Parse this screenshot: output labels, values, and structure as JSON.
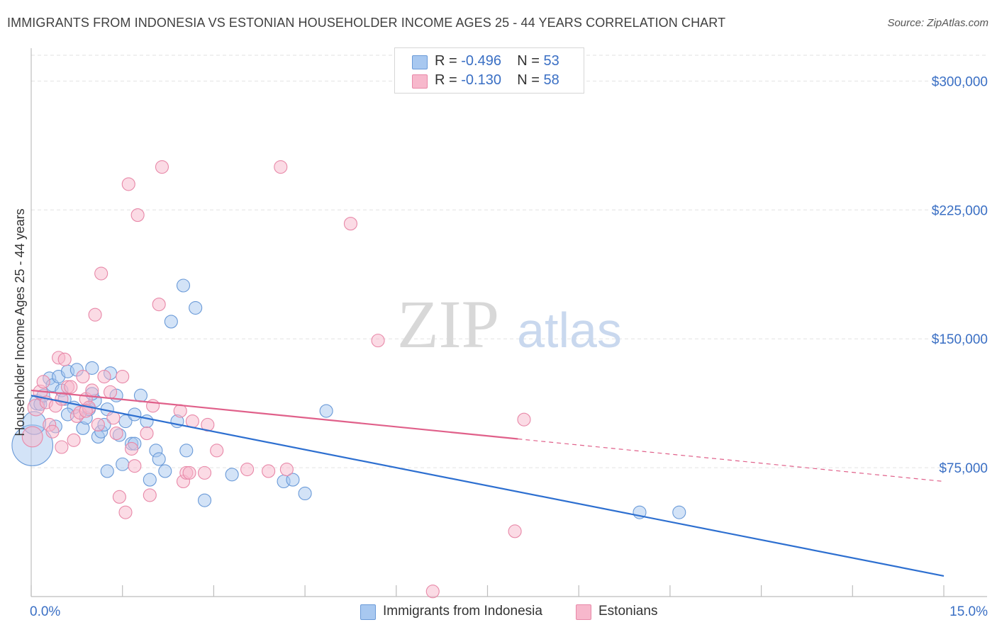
{
  "title": "IMMIGRANTS FROM INDONESIA VS ESTONIAN HOUSEHOLDER INCOME AGES 25 - 44 YEARS CORRELATION CHART",
  "source": "Source: ZipAtlas.com",
  "watermark": {
    "zip": "ZIP",
    "atlas": "atlas"
  },
  "legend": {
    "rows": [
      {
        "r_label": "R = ",
        "r_value": "-0.496",
        "n_label": "N = ",
        "n_value": "53"
      },
      {
        "r_label": "R = ",
        "r_value": " -0.130",
        "n_label": "N = ",
        "n_value": "58"
      }
    ]
  },
  "colors": {
    "blue_fill": "#a8c8f0",
    "blue_stroke": "#6a9ad8",
    "blue_line": "#2d6fd0",
    "pink_fill": "#f7b8cc",
    "pink_stroke": "#e888a8",
    "pink_line": "#e0608a",
    "tick_label": "#3a6fc4",
    "grid": "#e2e2e2"
  },
  "chart_data": {
    "type": "scatter",
    "title": "IMMIGRANTS FROM INDONESIA VS ESTONIAN HOUSEHOLDER INCOME AGES 25 - 44 YEARS CORRELATION CHART",
    "xlabel": "",
    "ylabel": "Householder Income Ages 25 - 44 years",
    "xlim": [
      0,
      15
    ],
    "ylim": [
      0,
      315000
    ],
    "x_tick_labels": [
      "0.0%",
      "15.0%"
    ],
    "y_ticks": [
      75000,
      150000,
      225000,
      300000
    ],
    "y_tick_labels": [
      "$75,000",
      "$150,000",
      "$225,000",
      "$300,000"
    ],
    "grid": true,
    "legend_position": "bottom",
    "series": [
      {
        "name": "Immigrants from Indonesia",
        "R": -0.496,
        "N": 53,
        "trend": {
          "x": [
            0.0,
            15.0
          ],
          "y": [
            117000,
            12000
          ],
          "dashed_from": null
        },
        "points": [
          {
            "x": 0.02,
            "y": 88000,
            "s": 3.2
          },
          {
            "x": 0.05,
            "y": 101000,
            "s": 1.8
          },
          {
            "x": 0.1,
            "y": 113000,
            "s": 1.2
          },
          {
            "x": 0.15,
            "y": 112000,
            "s": 1.0
          },
          {
            "x": 0.2,
            "y": 117000,
            "s": 1.0
          },
          {
            "x": 0.3,
            "y": 127000,
            "s": 1.0
          },
          {
            "x": 0.35,
            "y": 123000,
            "s": 1.0
          },
          {
            "x": 0.4,
            "y": 99000,
            "s": 1.0
          },
          {
            "x": 0.45,
            "y": 128000,
            "s": 1.0
          },
          {
            "x": 0.5,
            "y": 120000,
            "s": 1.0
          },
          {
            "x": 0.55,
            "y": 115000,
            "s": 1.0
          },
          {
            "x": 0.6,
            "y": 131000,
            "s": 1.0
          },
          {
            "x": 0.7,
            "y": 110000,
            "s": 1.0
          },
          {
            "x": 0.75,
            "y": 132000,
            "s": 1.0
          },
          {
            "x": 0.85,
            "y": 98000,
            "s": 1.0
          },
          {
            "x": 0.9,
            "y": 104000,
            "s": 1.0
          },
          {
            "x": 0.95,
            "y": 109000,
            "s": 1.0
          },
          {
            "x": 1.0,
            "y": 133000,
            "s": 1.0
          },
          {
            "x": 1.05,
            "y": 114000,
            "s": 1.0
          },
          {
            "x": 1.1,
            "y": 93000,
            "s": 1.0
          },
          {
            "x": 1.15,
            "y": 96000,
            "s": 1.0
          },
          {
            "x": 1.2,
            "y": 100000,
            "s": 1.0
          },
          {
            "x": 1.25,
            "y": 73000,
            "s": 1.0
          },
          {
            "x": 1.3,
            "y": 130000,
            "s": 1.0
          },
          {
            "x": 1.4,
            "y": 117000,
            "s": 1.0
          },
          {
            "x": 1.45,
            "y": 94000,
            "s": 1.0
          },
          {
            "x": 1.5,
            "y": 77000,
            "s": 1.0
          },
          {
            "x": 1.55,
            "y": 102000,
            "s": 1.0
          },
          {
            "x": 1.65,
            "y": 89000,
            "s": 1.0
          },
          {
            "x": 1.7,
            "y": 106000,
            "s": 1.0
          },
          {
            "x": 1.8,
            "y": 117000,
            "s": 1.0
          },
          {
            "x": 1.9,
            "y": 102000,
            "s": 1.0
          },
          {
            "x": 1.95,
            "y": 68000,
            "s": 1.0
          },
          {
            "x": 2.05,
            "y": 85000,
            "s": 1.0
          },
          {
            "x": 2.1,
            "y": 80000,
            "s": 1.0
          },
          {
            "x": 2.2,
            "y": 73000,
            "s": 1.0
          },
          {
            "x": 2.3,
            "y": 160000,
            "s": 1.0
          },
          {
            "x": 2.4,
            "y": 102000,
            "s": 1.0
          },
          {
            "x": 2.5,
            "y": 181000,
            "s": 1.0
          },
          {
            "x": 2.55,
            "y": 85000,
            "s": 1.0
          },
          {
            "x": 2.7,
            "y": 168000,
            "s": 1.0
          },
          {
            "x": 2.85,
            "y": 56000,
            "s": 1.0
          },
          {
            "x": 3.3,
            "y": 71000,
            "s": 1.0
          },
          {
            "x": 4.15,
            "y": 67000,
            "s": 1.0
          },
          {
            "x": 4.3,
            "y": 68000,
            "s": 1.0
          },
          {
            "x": 4.5,
            "y": 60000,
            "s": 1.0
          },
          {
            "x": 4.85,
            "y": 108000,
            "s": 1.0
          },
          {
            "x": 10.0,
            "y": 49000,
            "s": 1.0
          },
          {
            "x": 10.65,
            "y": 49000,
            "s": 1.0
          },
          {
            "x": 0.6,
            "y": 106000,
            "s": 1.0
          },
          {
            "x": 1.0,
            "y": 118000,
            "s": 1.0
          },
          {
            "x": 1.25,
            "y": 109000,
            "s": 1.0
          },
          {
            "x": 1.7,
            "y": 89000,
            "s": 1.0
          }
        ]
      },
      {
        "name": "Estonians",
        "R": -0.13,
        "N": 58,
        "trend": {
          "x": [
            0.0,
            15.0
          ],
          "y": [
            120000,
            67000
          ],
          "dashed_from": 8.0
        },
        "points": [
          {
            "x": 0.02,
            "y": 93000,
            "s": 1.6
          },
          {
            "x": 0.08,
            "y": 110000,
            "s": 1.3
          },
          {
            "x": 0.15,
            "y": 119000,
            "s": 1.1
          },
          {
            "x": 0.2,
            "y": 125000,
            "s": 1.0
          },
          {
            "x": 0.25,
            "y": 113000,
            "s": 1.0
          },
          {
            "x": 0.3,
            "y": 100000,
            "s": 1.0
          },
          {
            "x": 0.35,
            "y": 96000,
            "s": 1.0
          },
          {
            "x": 0.4,
            "y": 111000,
            "s": 1.0
          },
          {
            "x": 0.45,
            "y": 139000,
            "s": 1.0
          },
          {
            "x": 0.5,
            "y": 87000,
            "s": 1.0
          },
          {
            "x": 0.55,
            "y": 138000,
            "s": 1.0
          },
          {
            "x": 0.6,
            "y": 122000,
            "s": 1.0
          },
          {
            "x": 0.65,
            "y": 122000,
            "s": 1.0
          },
          {
            "x": 0.7,
            "y": 91000,
            "s": 1.0
          },
          {
            "x": 0.75,
            "y": 105000,
            "s": 1.0
          },
          {
            "x": 0.8,
            "y": 107000,
            "s": 1.0
          },
          {
            "x": 0.85,
            "y": 128000,
            "s": 1.0
          },
          {
            "x": 0.9,
            "y": 115000,
            "s": 1.0
          },
          {
            "x": 0.95,
            "y": 110000,
            "s": 1.0
          },
          {
            "x": 1.0,
            "y": 120000,
            "s": 1.0
          },
          {
            "x": 1.05,
            "y": 164000,
            "s": 1.0
          },
          {
            "x": 1.1,
            "y": 100000,
            "s": 1.0
          },
          {
            "x": 1.15,
            "y": 188000,
            "s": 1.0
          },
          {
            "x": 1.2,
            "y": 128000,
            "s": 1.0
          },
          {
            "x": 1.3,
            "y": 119000,
            "s": 1.0
          },
          {
            "x": 1.35,
            "y": 104000,
            "s": 1.0
          },
          {
            "x": 1.4,
            "y": 95000,
            "s": 1.0
          },
          {
            "x": 1.45,
            "y": 58000,
            "s": 1.0
          },
          {
            "x": 1.5,
            "y": 128000,
            "s": 1.0
          },
          {
            "x": 1.55,
            "y": 49000,
            "s": 1.0
          },
          {
            "x": 1.6,
            "y": 240000,
            "s": 1.0
          },
          {
            "x": 1.65,
            "y": 86000,
            "s": 1.0
          },
          {
            "x": 1.7,
            "y": 76000,
            "s": 1.0
          },
          {
            "x": 1.75,
            "y": 222000,
            "s": 1.0
          },
          {
            "x": 1.9,
            "y": 95000,
            "s": 1.0
          },
          {
            "x": 1.95,
            "y": 59000,
            "s": 1.0
          },
          {
            "x": 2.0,
            "y": 111000,
            "s": 1.0
          },
          {
            "x": 2.1,
            "y": 170000,
            "s": 1.0
          },
          {
            "x": 2.15,
            "y": 250000,
            "s": 1.0
          },
          {
            "x": 2.45,
            "y": 108000,
            "s": 1.0
          },
          {
            "x": 2.5,
            "y": 67000,
            "s": 1.0
          },
          {
            "x": 2.55,
            "y": 72000,
            "s": 1.0
          },
          {
            "x": 2.6,
            "y": 72000,
            "s": 1.0
          },
          {
            "x": 2.65,
            "y": 102000,
            "s": 1.0
          },
          {
            "x": 2.85,
            "y": 72000,
            "s": 1.0
          },
          {
            "x": 2.9,
            "y": 100000,
            "s": 1.0
          },
          {
            "x": 3.05,
            "y": 85000,
            "s": 1.0
          },
          {
            "x": 3.55,
            "y": 74000,
            "s": 1.0
          },
          {
            "x": 3.9,
            "y": 73000,
            "s": 1.0
          },
          {
            "x": 4.1,
            "y": 250000,
            "s": 1.0
          },
          {
            "x": 4.2,
            "y": 74000,
            "s": 1.0
          },
          {
            "x": 5.25,
            "y": 217000,
            "s": 1.0
          },
          {
            "x": 5.7,
            "y": 149000,
            "s": 1.0
          },
          {
            "x": 6.6,
            "y": 3000,
            "s": 1.0
          },
          {
            "x": 7.95,
            "y": 38000,
            "s": 1.0
          },
          {
            "x": 8.1,
            "y": 103000,
            "s": 1.0
          },
          {
            "x": 0.5,
            "y": 115000,
            "s": 1.0
          },
          {
            "x": 0.9,
            "y": 108000,
            "s": 1.0
          }
        ]
      }
    ]
  }
}
